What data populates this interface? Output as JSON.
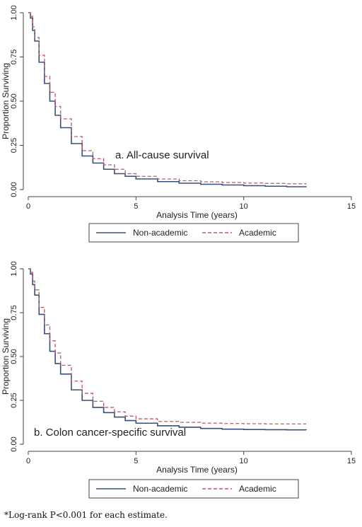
{
  "chart_data": [
    {
      "type": "line",
      "annotation": "a. All-cause survival",
      "xlabel": "Analysis Time (years)",
      "ylabel": "Proportion Surviving",
      "xlim": [
        0,
        15
      ],
      "ylim": [
        0,
        1
      ],
      "xticks": [
        "0",
        "5",
        "10",
        "15"
      ],
      "yticks": [
        "0.00",
        "0.25",
        "0.50",
        "0.75",
        "1.00"
      ],
      "grid": false,
      "legend": "bottom",
      "series": [
        {
          "name": "Non-academic",
          "color": "#3a4d7a",
          "dash": "solid",
          "x": [
            0,
            0.1,
            0.2,
            0.3,
            0.5,
            0.75,
            1.0,
            1.25,
            1.5,
            2.0,
            2.5,
            3.0,
            3.5,
            4.0,
            4.5,
            5.0,
            6.0,
            7.0,
            8.0,
            9.0,
            10.0,
            11.0,
            12.0,
            12.9
          ],
          "y": [
            1.0,
            0.97,
            0.9,
            0.84,
            0.72,
            0.6,
            0.5,
            0.42,
            0.35,
            0.26,
            0.19,
            0.15,
            0.115,
            0.09,
            0.075,
            0.06,
            0.045,
            0.036,
            0.03,
            0.026,
            0.022,
            0.019,
            0.016,
            0.014
          ]
        },
        {
          "name": "Academic",
          "color": "#b85a66",
          "dash": "dashed",
          "x": [
            0,
            0.1,
            0.2,
            0.3,
            0.5,
            0.75,
            1.0,
            1.25,
            1.5,
            2.0,
            2.5,
            3.0,
            3.5,
            4.0,
            4.5,
            5.0,
            6.0,
            7.0,
            8.0,
            9.0,
            10.0,
            11.0,
            12.0,
            12.9
          ],
          "y": [
            1.0,
            0.98,
            0.92,
            0.86,
            0.76,
            0.64,
            0.55,
            0.47,
            0.4,
            0.3,
            0.22,
            0.175,
            0.14,
            0.115,
            0.09,
            0.075,
            0.06,
            0.05,
            0.044,
            0.04,
            0.037,
            0.035,
            0.033,
            0.032
          ]
        }
      ]
    },
    {
      "type": "line",
      "annotation": "b. Colon cancer-specific survival",
      "xlabel": "Analysis Time (years)",
      "ylabel": "Proportion Surviving",
      "xlim": [
        0,
        15
      ],
      "ylim": [
        0,
        1
      ],
      "xticks": [
        "0",
        "5",
        "10",
        "15"
      ],
      "yticks": [
        "0.00",
        "0.25",
        "0.50",
        "0.75",
        "1.00"
      ],
      "grid": false,
      "legend": "bottom",
      "series": [
        {
          "name": "Non-academic",
          "color": "#3a4d7a",
          "dash": "solid",
          "x": [
            0,
            0.1,
            0.2,
            0.3,
            0.5,
            0.75,
            1.0,
            1.25,
            1.5,
            2.0,
            2.5,
            3.0,
            3.5,
            4.0,
            4.5,
            5.0,
            6.0,
            7.0,
            8.0,
            9.0,
            10.0,
            11.0,
            12.0,
            12.9
          ],
          "y": [
            1.0,
            0.97,
            0.91,
            0.85,
            0.74,
            0.63,
            0.53,
            0.46,
            0.4,
            0.31,
            0.25,
            0.21,
            0.18,
            0.155,
            0.135,
            0.12,
            0.105,
            0.097,
            0.09,
            0.086,
            0.084,
            0.083,
            0.082,
            0.081
          ]
        },
        {
          "name": "Academic",
          "color": "#b85a66",
          "dash": "dashed",
          "x": [
            0,
            0.1,
            0.2,
            0.3,
            0.5,
            0.75,
            1.0,
            1.25,
            1.5,
            2.0,
            2.5,
            3.0,
            3.5,
            4.0,
            4.5,
            5.0,
            6.0,
            7.0,
            8.0,
            9.0,
            10.0,
            11.0,
            12.0,
            12.9
          ],
          "y": [
            1.0,
            0.98,
            0.93,
            0.88,
            0.78,
            0.68,
            0.59,
            0.52,
            0.45,
            0.36,
            0.29,
            0.245,
            0.21,
            0.185,
            0.16,
            0.145,
            0.13,
            0.125,
            0.12,
            0.118,
            0.117,
            0.116,
            0.116,
            0.116
          ]
        }
      ]
    }
  ],
  "footnote": "*Log-rank P<0.001 for each estimate."
}
